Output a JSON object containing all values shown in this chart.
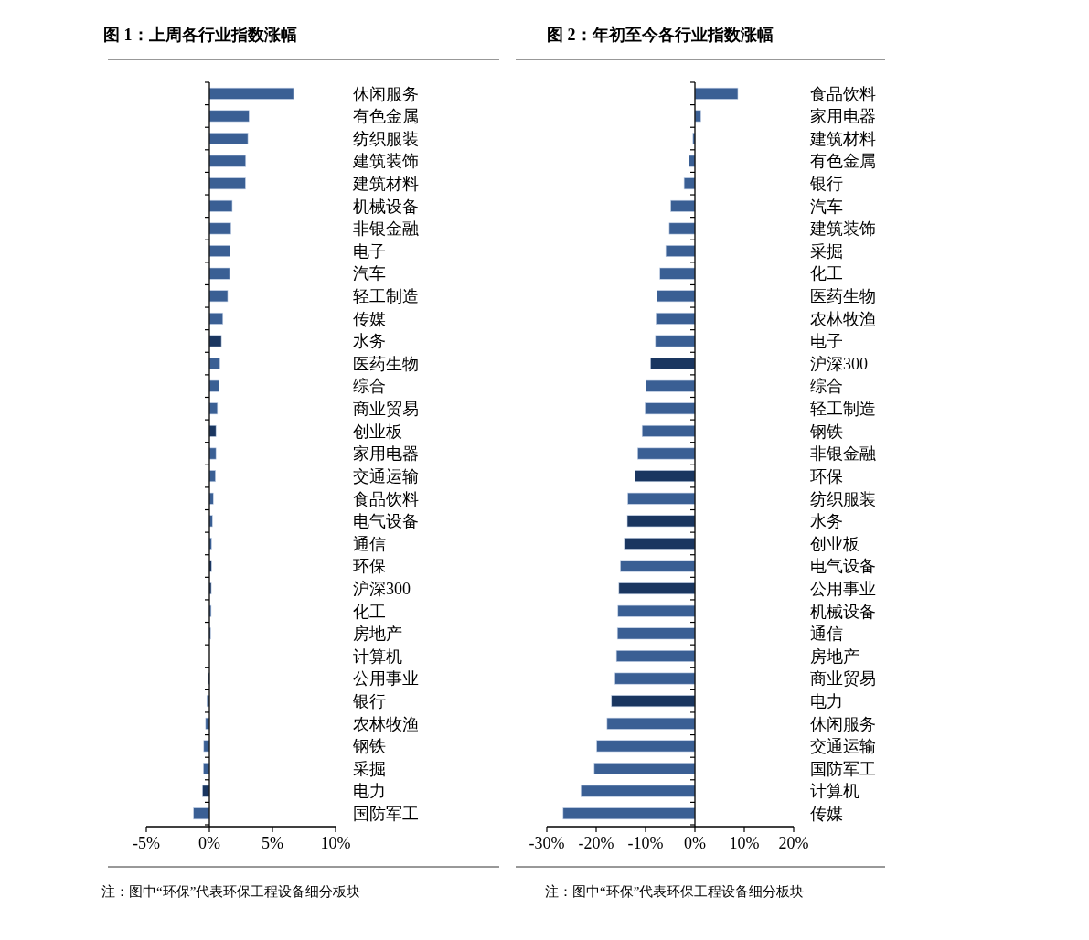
{
  "chart_data": [
    {
      "type": "bar",
      "orientation": "horizontal",
      "title": "图 1：上周各行业指数涨幅",
      "categories": [
        "休闲服务",
        "有色金属",
        "纺织服装",
        "建筑装饰",
        "建筑材料",
        "机械设备",
        "非银金融",
        "电子",
        "汽车",
        "轻工制造",
        "传媒",
        "水务",
        "医药生物",
        "综合",
        "商业贸易",
        "创业板",
        "家用电器",
        "交通运输",
        "食品饮料",
        "电气设备",
        "通信",
        "环保",
        "沪深300",
        "化工",
        "房地产",
        "计算机",
        "公用事业",
        "银行",
        "农林牧渔",
        "钢铁",
        "采掘",
        "电力",
        "国防军工"
      ],
      "values": [
        6.67,
        3.14,
        3.05,
        2.88,
        2.86,
        1.81,
        1.71,
        1.64,
        1.6,
        1.45,
        1.07,
        0.95,
        0.83,
        0.76,
        0.64,
        0.52,
        0.52,
        0.48,
        0.31,
        0.24,
        0.17,
        0.17,
        0.15,
        0.14,
        0.1,
        null,
        -0.08,
        -0.2,
        -0.3,
        -0.45,
        -0.48,
        -0.55,
        -1.26
      ],
      "colors": [
        "#3a5f94",
        "#3a5f94",
        "#3a5f94",
        "#3a5f94",
        "#3a5f94",
        "#3a5f94",
        "#3a5f94",
        "#3a5f94",
        "#3a5f94",
        "#3a5f94",
        "#3a5f94",
        "#1a3660",
        "#3a5f94",
        "#3a5f94",
        "#3a5f94",
        "#1a3660",
        "#3a5f94",
        "#3a5f94",
        "#3a5f94",
        "#3a5f94",
        "#3a5f94",
        "#1a3660",
        "#1a3660",
        "#3a5f94",
        "#3a5f94",
        null,
        "#1a3660",
        "#3a5f94",
        "#3a5f94",
        "#3a5f94",
        "#3a5f94",
        "#1a3660",
        "#3a5f94"
      ],
      "xlim": [
        -5,
        10
      ],
      "xticks": [
        {
          "value": -5,
          "label": "-5%"
        },
        {
          "value": 0,
          "label": "0%"
        },
        {
          "value": 5,
          "label": "5%"
        },
        {
          "value": 10,
          "label": "10%"
        }
      ],
      "annotations": [
        "注：图中“环保”代表环保工程设备细分板块"
      ]
    },
    {
      "type": "bar",
      "orientation": "horizontal",
      "title": "图 2：年初至今各行业指数涨幅",
      "categories": [
        "食品饮料",
        "家用电器",
        "建筑材料",
        "有色金属",
        "银行",
        "汽车",
        "建筑装饰",
        "采掘",
        "化工",
        "医药生物",
        "农林牧渔",
        "电子",
        "沪深300",
        "综合",
        "轻工制造",
        "钢铁",
        "非银金融",
        "环保",
        "纺织服装",
        "水务",
        "创业板",
        "电气设备",
        "公用事业",
        "机械设备",
        "通信",
        "房地产",
        "商业贸易",
        "电力",
        "休闲服务",
        "交通运输",
        "国防军工",
        "计算机",
        "传媒"
      ],
      "values": [
        8.7,
        1.2,
        -0.4,
        -1.2,
        -2.2,
        -4.9,
        -5.2,
        -5.9,
        -7.1,
        -7.7,
        -7.9,
        -8.0,
        -9.0,
        -9.9,
        -10.1,
        -10.7,
        -11.6,
        -12.1,
        -13.6,
        -13.7,
        -14.3,
        -15.1,
        -15.4,
        -15.6,
        -15.7,
        -15.9,
        -16.2,
        -16.9,
        -17.8,
        -19.9,
        -20.4,
        -23.1,
        -26.7
      ],
      "colors": [
        "#3a5f94",
        "#3a5f94",
        "#3a5f94",
        "#3a5f94",
        "#3a5f94",
        "#3a5f94",
        "#3a5f94",
        "#3a5f94",
        "#3a5f94",
        "#3a5f94",
        "#3a5f94",
        "#3a5f94",
        "#1a3660",
        "#3a5f94",
        "#3a5f94",
        "#3a5f94",
        "#3a5f94",
        "#1a3660",
        "#3a5f94",
        "#1a3660",
        "#1a3660",
        "#3a5f94",
        "#1a3660",
        "#3a5f94",
        "#3a5f94",
        "#3a5f94",
        "#3a5f94",
        "#1a3660",
        "#3a5f94",
        "#3a5f94",
        "#3a5f94",
        "#3a5f94",
        "#3a5f94"
      ],
      "xlim": [
        -30,
        20
      ],
      "xticks": [
        {
          "value": -30,
          "label": "-30%"
        },
        {
          "value": -20,
          "label": "-20%"
        },
        {
          "value": -10,
          "label": "-10%"
        },
        {
          "value": 0,
          "label": "0%"
        },
        {
          "value": 10,
          "label": "10%"
        },
        {
          "value": 20,
          "label": "20%"
        }
      ],
      "annotations": [
        "注：图中“环保”代表环保工程设备细分板块"
      ]
    }
  ]
}
